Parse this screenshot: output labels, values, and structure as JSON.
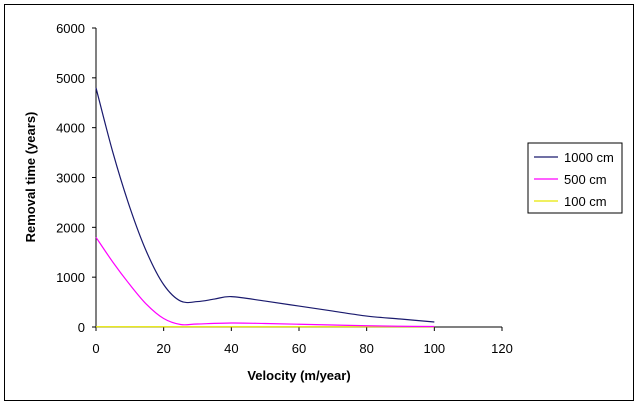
{
  "chart_data": {
    "type": "line",
    "title": "",
    "xlabel": "Velocity (m/year)",
    "ylabel": "Removal time (years)",
    "xlim": [
      0,
      120
    ],
    "ylim": [
      0,
      6000
    ],
    "x_ticks": [
      0,
      20,
      40,
      60,
      80,
      100,
      120
    ],
    "y_ticks": [
      0,
      1000,
      2000,
      3000,
      4000,
      5000,
      6000
    ],
    "x_tick_labels": [
      "0",
      "20",
      "40",
      "60",
      "80",
      "100",
      "120"
    ],
    "y_tick_labels": [
      "0",
      "1000",
      "2000",
      "3000",
      "4000",
      "5000",
      "6000"
    ],
    "grid": false,
    "legend_position": "right",
    "series": [
      {
        "name": "1000 cm",
        "color": "#1a1a6e",
        "x": [
          0,
          5,
          10,
          15,
          20,
          25,
          30,
          35,
          40,
          50,
          60,
          70,
          80,
          90,
          100
        ],
        "y": [
          4800,
          3500,
          2400,
          1500,
          850,
          520,
          510,
          560,
          610,
          520,
          420,
          320,
          220,
          160,
          100
        ]
      },
      {
        "name": "500 cm",
        "color": "#ff00ff",
        "x": [
          0,
          5,
          10,
          15,
          20,
          25,
          30,
          40,
          50,
          60,
          70,
          80,
          90,
          100
        ],
        "y": [
          1800,
          1300,
          850,
          450,
          170,
          50,
          60,
          80,
          70,
          55,
          40,
          25,
          15,
          10
        ]
      },
      {
        "name": "100 cm",
        "color": "#e6e600",
        "x": [
          0,
          20,
          40,
          60,
          80,
          100
        ],
        "y": [
          5,
          5,
          5,
          5,
          5,
          5
        ]
      }
    ]
  }
}
